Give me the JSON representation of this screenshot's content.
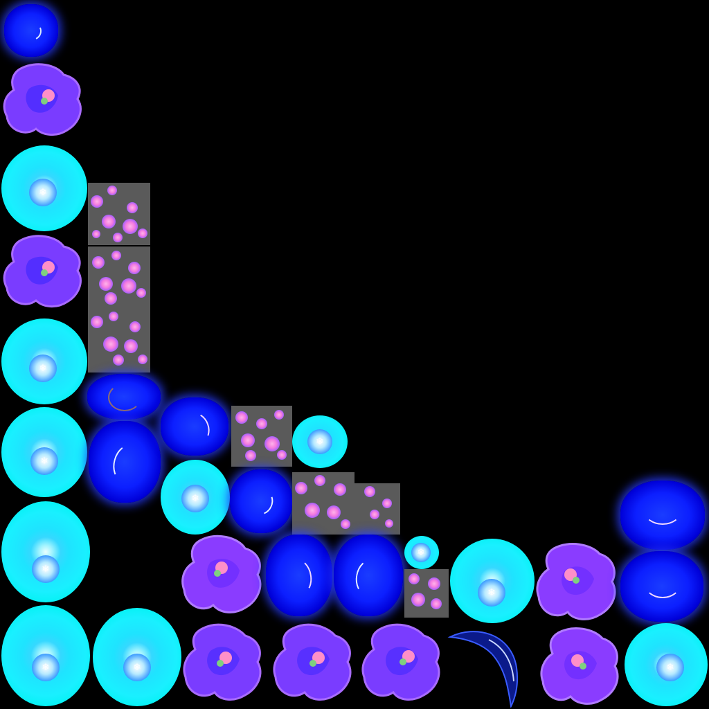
{
  "atlas": {
    "background": "#000000",
    "colors": {
      "blue_orb": "#0c1fff",
      "cyan_orb": "#19f0ff",
      "pink_particles": "#f47be0",
      "flower_purple": "#8a3cff",
      "flower_center": "#ff8fc8"
    },
    "sprite_kinds": [
      "blue-orb-icon",
      "cyan-orb-icon",
      "pink-particles-icon",
      "violet-flower-icon",
      "dark-crescent-icon"
    ]
  }
}
